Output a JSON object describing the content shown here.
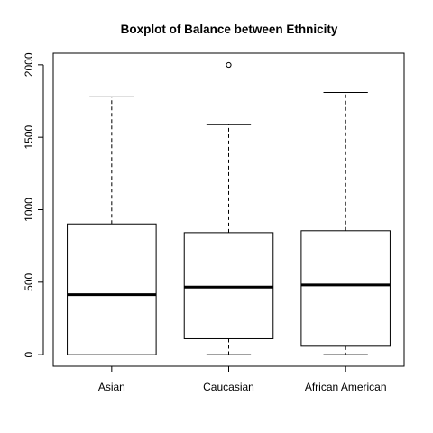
{
  "chart_data": {
    "type": "boxplot",
    "title": "Boxplot of Balance between Ethnicity",
    "xlabel": "",
    "ylabel": "",
    "categories": [
      "Asian",
      "Caucasian",
      "African American"
    ],
    "boxes": [
      {
        "whisker_low": 0,
        "q1": 0,
        "median": 414,
        "q3": 902,
        "whisker_high": 1779,
        "outliers": []
      },
      {
        "whisker_low": 0,
        "q1": 110,
        "median": 466,
        "q3": 842,
        "whisker_high": 1587,
        "outliers": [
          1999
        ]
      },
      {
        "whisker_low": 0,
        "q1": 58,
        "median": 481,
        "q3": 855,
        "whisker_high": 1809,
        "outliers": []
      }
    ],
    "yticks": [
      0,
      500,
      1000,
      1500,
      2000
    ],
    "ytick_labels": [
      "0",
      "500",
      "1000",
      "1500",
      "2000"
    ],
    "ylim": [
      -80,
      2080
    ],
    "grid": false,
    "legend": "none"
  }
}
